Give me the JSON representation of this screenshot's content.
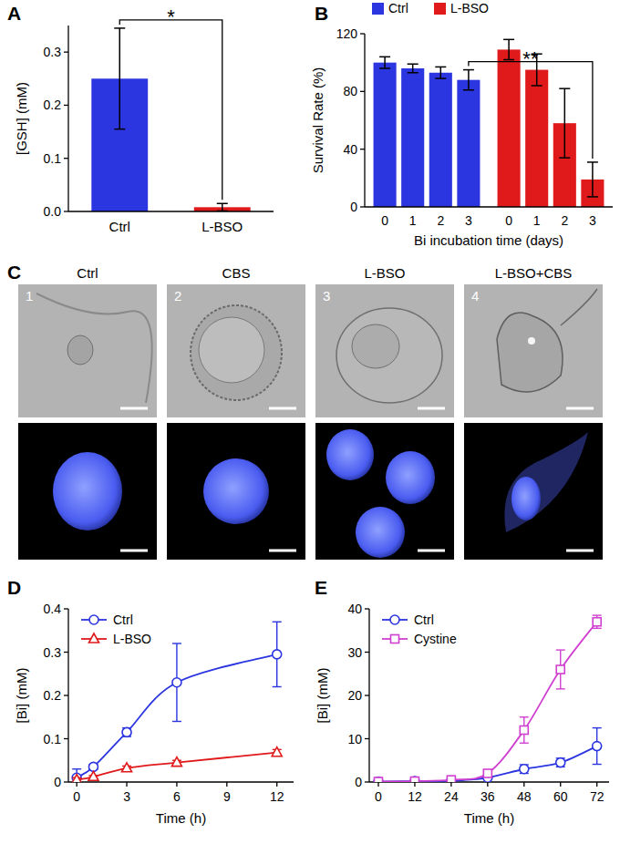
{
  "chart_data": [
    {
      "panel": "A",
      "type": "bar",
      "categories": [
        "Ctrl",
        "L-BSO"
      ],
      "values": [
        0.25,
        0.008
      ],
      "errors": [
        0.095,
        0.007
      ],
      "colors": [
        "#2b35e0",
        "#e0191b"
      ],
      "y_label": "[GSH] (mM)",
      "ylim": [
        0,
        0.35
      ],
      "yticks": [
        {
          "value": 0,
          "label": "0.0"
        },
        0.1,
        0.2,
        0.3
      ],
      "annotations": [
        {
          "text": "*",
          "from": "Ctrl",
          "to": "L-BSO"
        }
      ]
    },
    {
      "panel": "B",
      "type": "bar",
      "categories": [
        "0",
        "1",
        "2",
        "3"
      ],
      "series": [
        {
          "name": "Ctrl",
          "color": "#2b35e0",
          "values": [
            100,
            96,
            93,
            88
          ],
          "errors": [
            4,
            3,
            4,
            7
          ]
        },
        {
          "name": "L-BSO",
          "color": "#e0191b",
          "values": [
            109,
            95,
            58,
            19
          ],
          "errors": [
            7,
            11,
            24,
            12
          ]
        }
      ],
      "x_label": "Bi incubation time (days)",
      "y_label": "Survival Rate (%)",
      "ylim": [
        0,
        120
      ],
      "yticks": [
        0,
        40,
        80,
        120
      ],
      "legend": "upper left",
      "annotations": [
        {
          "text": "**",
          "from": [
            "Ctrl",
            "3"
          ],
          "to": [
            "L-BSO",
            "3"
          ]
        }
      ]
    },
    {
      "panel": "D",
      "type": "line",
      "x": [
        0,
        1,
        3,
        6,
        12
      ],
      "series": [
        {
          "name": "Ctrl",
          "color": "#2b35e0",
          "marker": "circle",
          "values": [
            0.01,
            0.035,
            0.115,
            0.23,
            0.295
          ],
          "errors": [
            0.02,
            0.005,
            0.01,
            0.09,
            0.075
          ]
        },
        {
          "name": "L-BSO",
          "color": "#e0191b",
          "marker": "triangle",
          "values": [
            0.005,
            0.012,
            0.032,
            0.045,
            0.068
          ],
          "errors": [
            0.005,
            0.003,
            0.005,
            0.005,
            0.007
          ]
        }
      ],
      "x_label": "Time (h)",
      "y_label": "[Bi] (mM)",
      "xlim": [
        -0.5,
        13
      ],
      "xticks": [
        0,
        3,
        6,
        9,
        12
      ],
      "ylim": [
        0,
        0.4
      ],
      "yticks": [
        0,
        0.1,
        0.2,
        0.3,
        0.4
      ],
      "legend": "upper left"
    },
    {
      "panel": "E",
      "type": "line",
      "x": [
        0,
        12,
        24,
        36,
        48,
        60,
        72
      ],
      "series": [
        {
          "name": "Ctrl",
          "color": "#2b35e0",
          "marker": "circle",
          "values": [
            0.1,
            0.2,
            0.3,
            1,
            3,
            4.5,
            8.3
          ],
          "errors": [
            0.1,
            0.1,
            0.2,
            0.3,
            1,
            1,
            4.2
          ]
        },
        {
          "name": "Cystine",
          "color": "#d040d0",
          "marker": "square",
          "values": [
            0.1,
            0.2,
            0.5,
            2,
            12,
            26,
            37
          ],
          "errors": [
            0.1,
            0.1,
            0.3,
            0.5,
            3,
            4.5,
            1.5
          ]
        }
      ],
      "x_label": "Time (h)",
      "y_label": "[Bi] (mM)",
      "xlim": [
        -3,
        76
      ],
      "xticks": [
        0,
        12,
        24,
        36,
        48,
        60,
        72
      ],
      "ylim": [
        0,
        40
      ],
      "yticks": [
        0,
        10,
        20,
        30,
        40
      ],
      "legend": "upper left"
    }
  ],
  "image_panel": {
    "panel": "C",
    "images": [
      {
        "number": "1",
        "label": "Ctrl"
      },
      {
        "number": "2",
        "label": "CBS"
      },
      {
        "number": "3",
        "label": "L-BSO"
      },
      {
        "number": "4",
        "label": "L-BSO+CBS"
      }
    ]
  }
}
